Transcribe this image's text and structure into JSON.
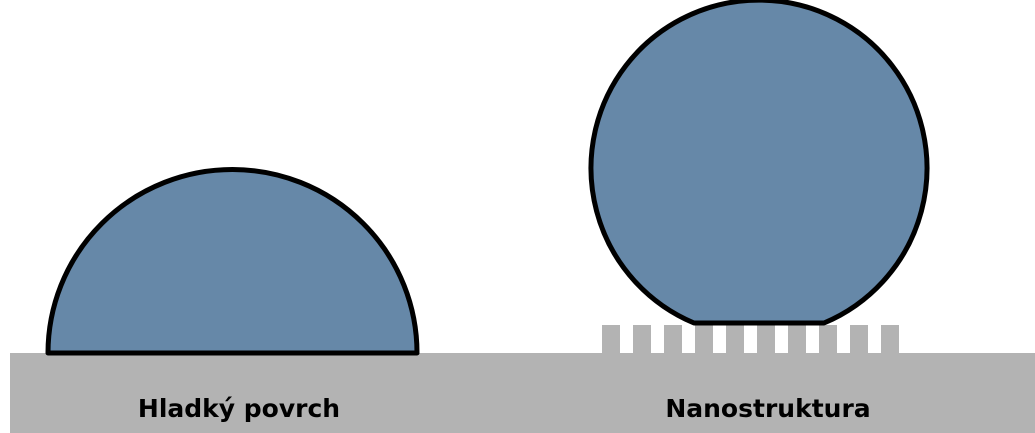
{
  "labels": {
    "left": "Hladký povrch",
    "right": "Nanostruktura"
  }
}
